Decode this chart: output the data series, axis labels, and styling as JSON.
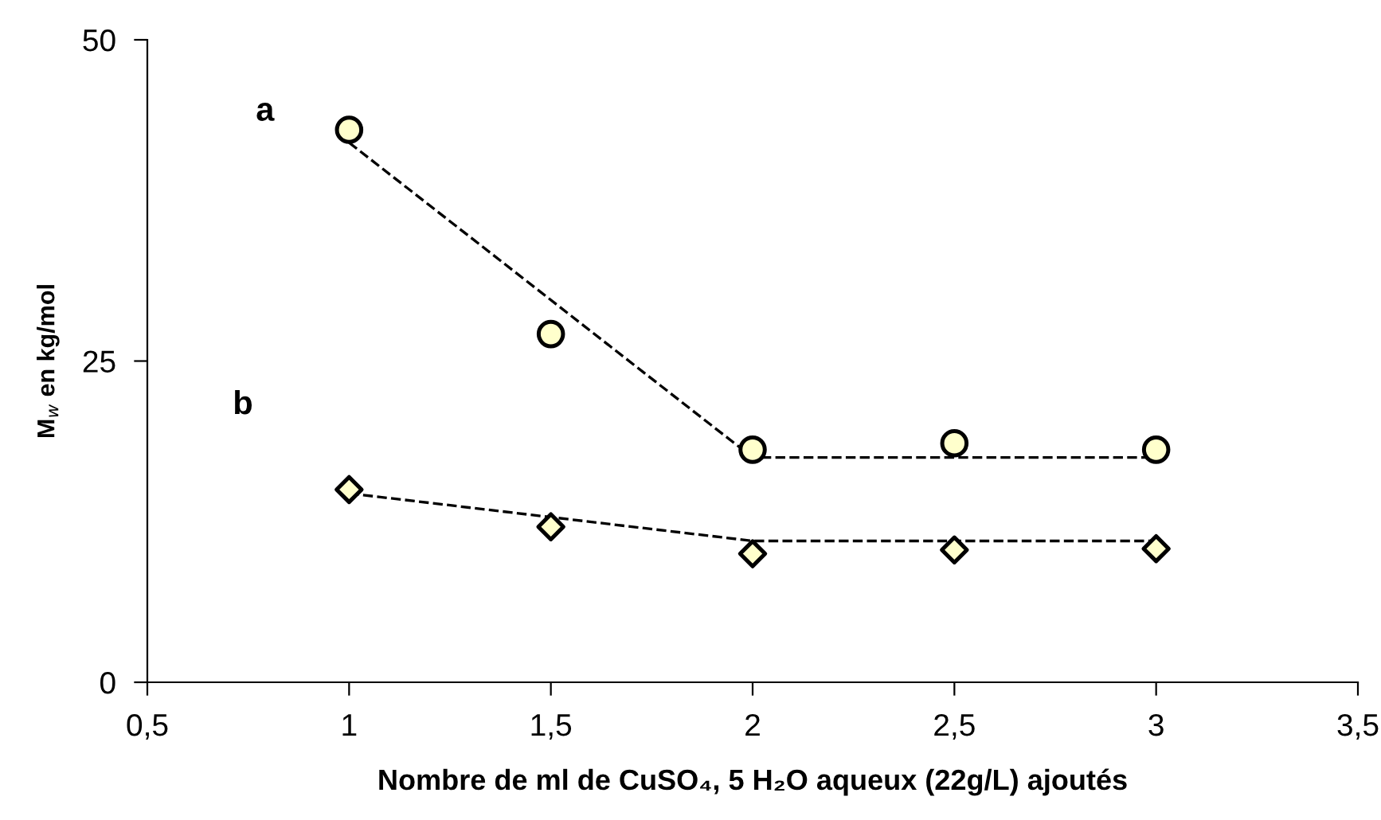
{
  "chart_data": {
    "type": "scatter",
    "xlabel": "Nombre de ml de CuSO₄, 5 H₂O aqueux (22g/L) ajoutés",
    "ylabel": "M$_{w}$ en kg/mol",
    "xlim": [
      0.5,
      3.5
    ],
    "ylim": [
      0,
      50
    ],
    "xticks": [
      {
        "value": 0.5,
        "label": "0,5"
      },
      1,
      {
        "value": 1.5,
        "label": "1,5"
      },
      2,
      {
        "value": 2.5,
        "label": "2,5"
      },
      3,
      {
        "value": 3.5,
        "label": "3,5"
      }
    ],
    "yticks": [
      0,
      25,
      50
    ],
    "grid": false,
    "legend": false,
    "series": [
      {
        "type": "line",
        "x": [
          1,
          2,
          3
        ],
        "values": [
          42,
          17.5,
          17.5
        ],
        "color": "#000000",
        "line_style": "dashed",
        "marker": "none"
      },
      {
        "type": "line",
        "x": [
          1,
          2,
          3
        ],
        "values": [
          14.7,
          11,
          11
        ],
        "color": "#000000",
        "line_style": "dashed",
        "marker": "none"
      },
      {
        "x": [
          1,
          1.5,
          2,
          2.5,
          3
        ],
        "values": [
          43,
          27.1,
          18.1,
          18.6,
          18.1
        ],
        "color": "#ffffcc",
        "marker": "circle"
      },
      {
        "x": [
          1,
          1.5,
          2,
          2.5,
          3
        ],
        "values": [
          15,
          12.1,
          10,
          10.3,
          10.4
        ],
        "color": "#ffffcc",
        "marker": "diamond"
      }
    ],
    "annotations": [
      "a",
      "b"
    ]
  }
}
